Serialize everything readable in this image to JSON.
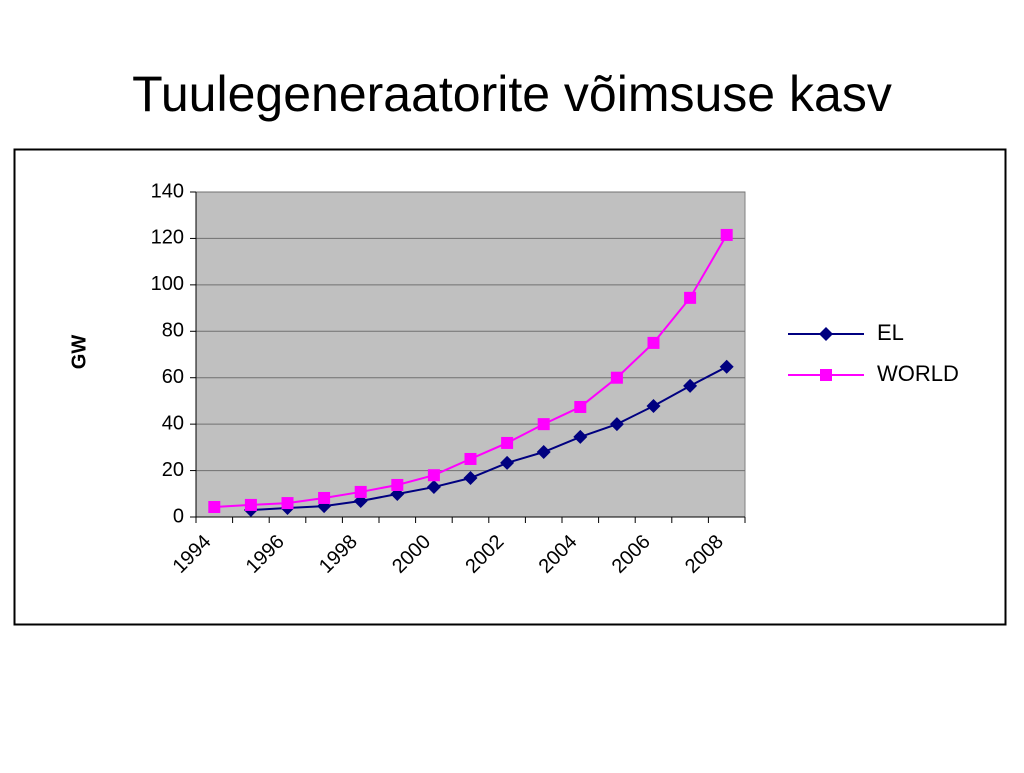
{
  "chart_data": {
    "type": "line",
    "title": "Tuulegeneraatorite võimsuse kasv",
    "y_label": "GW",
    "categories": [
      "1994",
      null,
      "1996",
      null,
      "1998",
      null,
      "2000",
      null,
      "2002",
      null,
      "2004",
      null,
      "2006",
      null,
      "2008"
    ],
    "series": [
      {
        "name": "EL",
        "color": "#000080",
        "marker": "diamond",
        "values": [
          null,
          3,
          3.9,
          4.7,
          6.9,
          9.9,
          12.9,
          16.8,
          23.3,
          28,
          34.5,
          40,
          47.8,
          56.5,
          64.7
        ]
      },
      {
        "name": "WORLD",
        "color": "#ff00ff",
        "marker": "square",
        "values": [
          4.3,
          5.2,
          6,
          8.2,
          10.8,
          13.8,
          18,
          25,
          31.9,
          40,
          47.4,
          60,
          75,
          94.4,
          121.5
        ]
      }
    ],
    "ylim": [
      0,
      140
    ],
    "yticks": [
      0,
      20,
      40,
      60,
      80,
      100,
      120,
      140
    ],
    "grid": true,
    "legend": "right",
    "plot_background": "#c0c0c0"
  }
}
